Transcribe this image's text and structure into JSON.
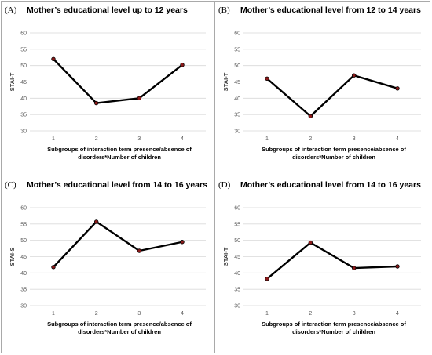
{
  "chart_data": [
    {
      "type": "line",
      "panel_label": "(A)",
      "title": "Mother’s educational level up to 12 years",
      "ylabel": "STAI-T",
      "xlabel_lines": [
        "Subgroups of interaction term presence/absence of",
        "disorders*Number of children"
      ],
      "x": [
        1,
        2,
        3,
        4
      ],
      "values": [
        52,
        38.5,
        40,
        50.2
      ],
      "ylim": [
        30,
        60
      ],
      "yticks": [
        30,
        35,
        40,
        45,
        50,
        55,
        60
      ],
      "grid": true
    },
    {
      "type": "line",
      "panel_label": "(B)",
      "title": "Mother’s educational level from 12 to 14 years",
      "ylabel": "STAI-T",
      "xlabel_lines": [
        "Subgroups of interaction term presence/absence of",
        "disorders*Number of children"
      ],
      "x": [
        1,
        2,
        3,
        4
      ],
      "values": [
        46,
        34.5,
        47,
        43
      ],
      "ylim": [
        30,
        60
      ],
      "yticks": [
        30,
        35,
        40,
        45,
        50,
        55,
        60
      ],
      "grid": true
    },
    {
      "type": "line",
      "panel_label": "(C)",
      "title": "Mother’s educational level from 14 to 16 years",
      "ylabel": "STAI-S",
      "xlabel_lines": [
        "Subgroups of interaction term presence/absence of",
        "disorders*Number of children"
      ],
      "x": [
        1,
        2,
        3,
        4
      ],
      "values": [
        41.8,
        55.7,
        46.8,
        49.5
      ],
      "ylim": [
        30,
        60
      ],
      "yticks": [
        30,
        35,
        40,
        45,
        50,
        55,
        60
      ],
      "grid": true
    },
    {
      "type": "line",
      "panel_label": "(D)",
      "title": "Mother’s educational level from 14 to 16 years",
      "ylabel": "STAI-T",
      "xlabel_lines": [
        "Subgroups of interaction term presence/absence of",
        "disorders*Number of children"
      ],
      "x": [
        1,
        2,
        3,
        4
      ],
      "values": [
        38.2,
        49.3,
        41.5,
        42
      ],
      "ylim": [
        30,
        60
      ],
      "yticks": [
        30,
        35,
        40,
        45,
        50,
        55,
        60
      ],
      "grid": true
    }
  ],
  "colors": {
    "line": "#000000",
    "marker": "#8b1a1a",
    "grid": "#d9d9d9",
    "border": "#a9a9a9"
  }
}
